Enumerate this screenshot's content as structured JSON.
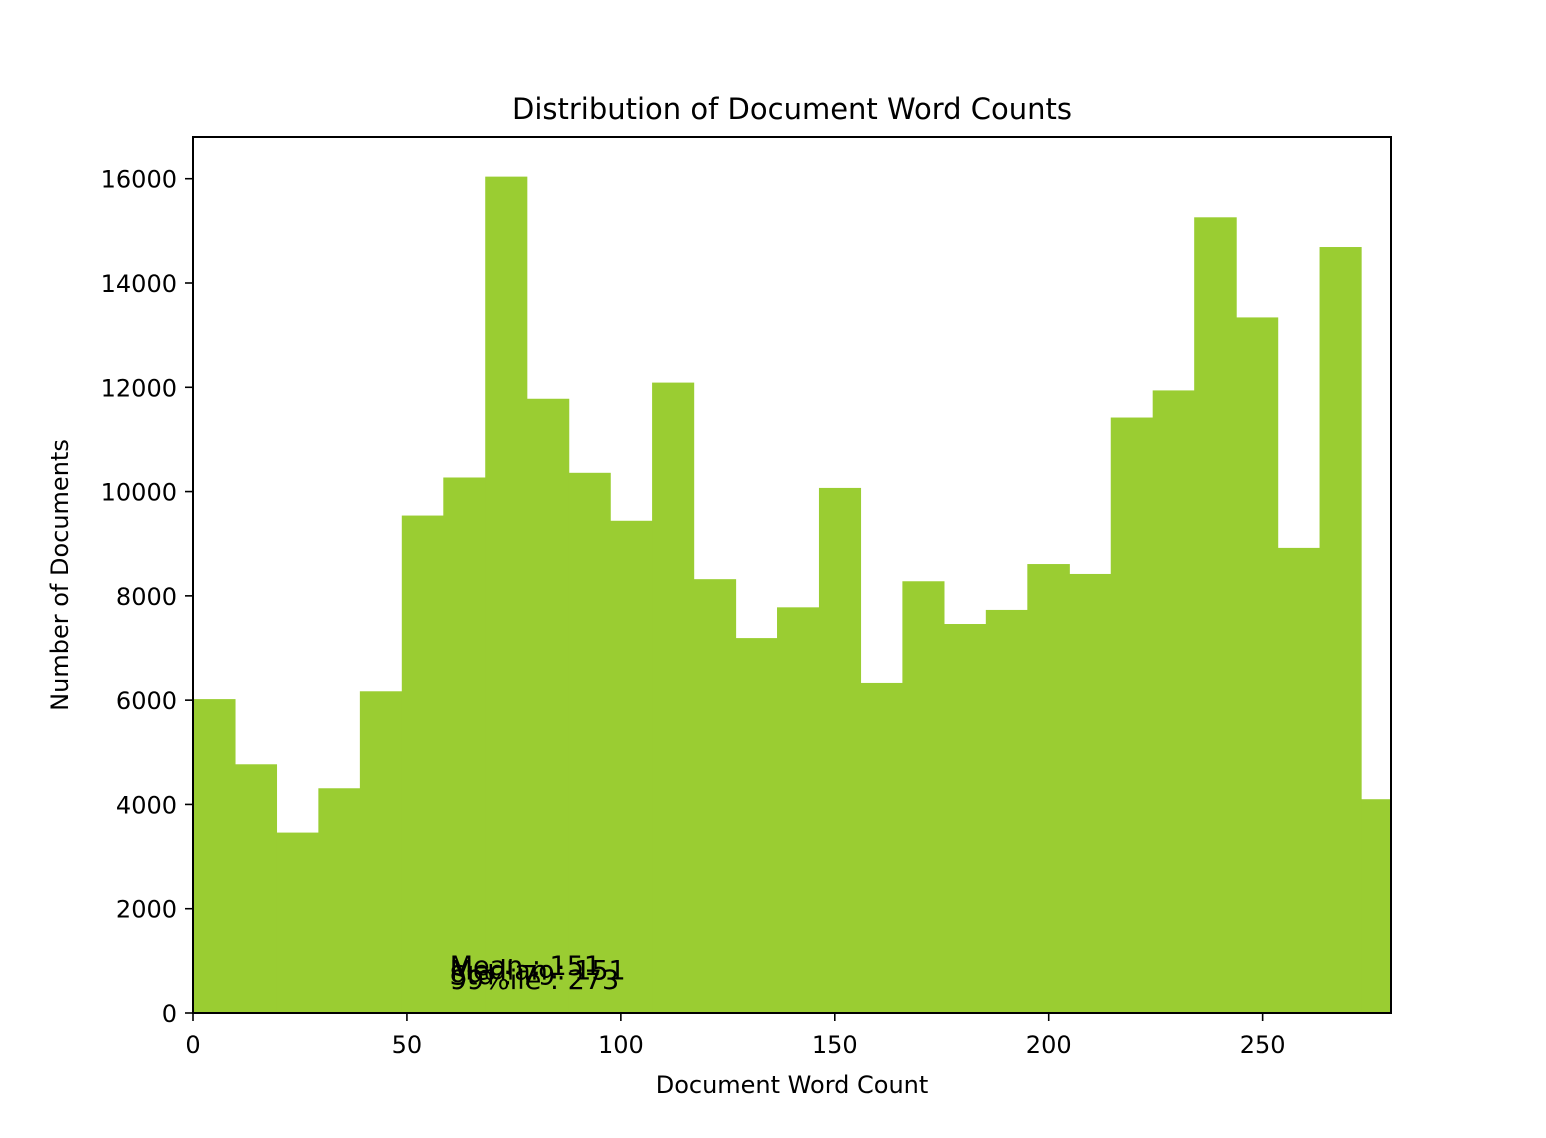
{
  "chart_data": {
    "type": "bar",
    "title": "Distribution of Document Word Counts",
    "xlabel": "Document Word Count",
    "ylabel": "Number of Documents",
    "xlim": [
      0,
      280
    ],
    "ylim": [
      0,
      16800
    ],
    "xticks": [
      0,
      50,
      100,
      150,
      200,
      250
    ],
    "yticks": [
      0,
      2000,
      4000,
      6000,
      8000,
      10000,
      12000,
      14000,
      16000
    ],
    "bar_color": "#9acd32",
    "grid": false,
    "bins": [
      {
        "x0": 0,
        "x1": 9.8,
        "count": 6020
      },
      {
        "x0": 9.8,
        "x1": 19.5,
        "count": 4770
      },
      {
        "x0": 19.5,
        "x1": 29.3,
        "count": 3460
      },
      {
        "x0": 29.3,
        "x1": 39.0,
        "count": 4310
      },
      {
        "x0": 39.0,
        "x1": 48.8,
        "count": 6170
      },
      {
        "x0": 48.8,
        "x1": 58.5,
        "count": 9540
      },
      {
        "x0": 58.5,
        "x1": 68.3,
        "count": 10270
      },
      {
        "x0": 68.3,
        "x1": 78.0,
        "count": 16040
      },
      {
        "x0": 78.0,
        "x1": 87.8,
        "count": 11780
      },
      {
        "x0": 87.8,
        "x1": 97.5,
        "count": 10360
      },
      {
        "x0": 97.5,
        "x1": 107.3,
        "count": 9440
      },
      {
        "x0": 107.3,
        "x1": 117.0,
        "count": 12090
      },
      {
        "x0": 117.0,
        "x1": 126.8,
        "count": 8320
      },
      {
        "x0": 126.8,
        "x1": 136.5,
        "count": 7190
      },
      {
        "x0": 136.5,
        "x1": 146.3,
        "count": 7780
      },
      {
        "x0": 146.3,
        "x1": 156.0,
        "count": 10070
      },
      {
        "x0": 156.0,
        "x1": 165.8,
        "count": 6330
      },
      {
        "x0": 165.8,
        "x1": 175.5,
        "count": 8280
      },
      {
        "x0": 175.5,
        "x1": 185.3,
        "count": 7460
      },
      {
        "x0": 185.3,
        "x1": 195.0,
        "count": 7730
      },
      {
        "x0": 195.0,
        "x1": 204.8,
        "count": 8610
      },
      {
        "x0": 204.8,
        "x1": 214.5,
        "count": 8420
      },
      {
        "x0": 214.5,
        "x1": 224.3,
        "count": 11420
      },
      {
        "x0": 224.3,
        "x1": 234.0,
        "count": 11940
      },
      {
        "x0": 234.0,
        "x1": 243.8,
        "count": 15260
      },
      {
        "x0": 243.8,
        "x1": 253.5,
        "count": 13340
      },
      {
        "x0": 253.5,
        "x1": 263.3,
        "count": 8920
      },
      {
        "x0": 263.3,
        "x1": 273.0,
        "count": 14690
      },
      {
        "x0": 273.0,
        "x1": 282.8,
        "count": 4100
      }
    ],
    "annotations": [
      {
        "text": "Mean : 151",
        "x": 60,
        "y": 920
      },
      {
        "text": "Median : 151",
        "x": 60,
        "y": 830
      },
      {
        "text": "Std : 79",
        "x": 60,
        "y": 740
      },
      {
        "text": "99%ile : 273",
        "x": 60,
        "y": 650
      }
    ]
  }
}
